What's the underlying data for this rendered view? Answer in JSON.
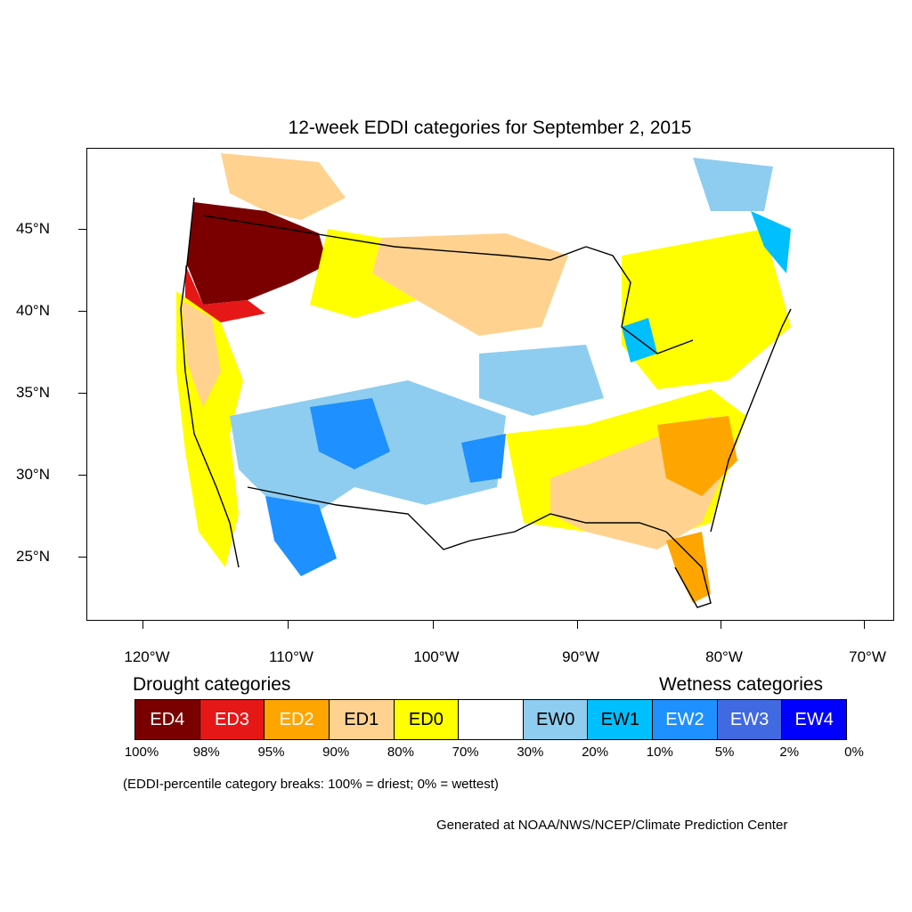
{
  "title": "12-week EDDI categories for September 2, 2015",
  "x_axis_ticks": [
    "120°W",
    "110°W",
    "100°W",
    "90°W",
    "80°W",
    "70°W"
  ],
  "y_axis_ticks": [
    "45°N",
    "40°N",
    "35°N",
    "30°N",
    "25°N"
  ],
  "legend": {
    "drought_heading": "Drought categories",
    "wetness_heading": "Wetness categories",
    "categories": [
      {
        "label": "ED4",
        "color": "#7a0000",
        "text_color": "#ffffff"
      },
      {
        "label": "ED3",
        "color": "#e61717",
        "text_color": "#ffffff"
      },
      {
        "label": "ED2",
        "color": "#ffa500",
        "text_color": "#ffffff"
      },
      {
        "label": "ED1",
        "color": "#ffd28f",
        "text_color": "#000000"
      },
      {
        "label": "ED0",
        "color": "#ffff00",
        "text_color": "#000000"
      },
      {
        "label": "",
        "color": "#ffffff",
        "text_color": "#000000"
      },
      {
        "label": "EW0",
        "color": "#8ecdef",
        "text_color": "#000000"
      },
      {
        "label": "EW1",
        "color": "#00bfff",
        "text_color": "#000000"
      },
      {
        "label": "EW2",
        "color": "#1e90ff",
        "text_color": "#ffffff"
      },
      {
        "label": "EW3",
        "color": "#4169e1",
        "text_color": "#ffffff"
      },
      {
        "label": "EW4",
        "color": "#0000ff",
        "text_color": "#ffffff"
      }
    ],
    "breaks": [
      "100%",
      "98%",
      "95%",
      "90%",
      "80%",
      "70%",
      "30%",
      "20%",
      "10%",
      "5%",
      "2%",
      "0%"
    ]
  },
  "note": "(EDDI-percentile category breaks: 100% = driest; 0% = wettest)",
  "credit": "Generated at NOAA/NWS/NCEP/Climate Prediction Center"
}
